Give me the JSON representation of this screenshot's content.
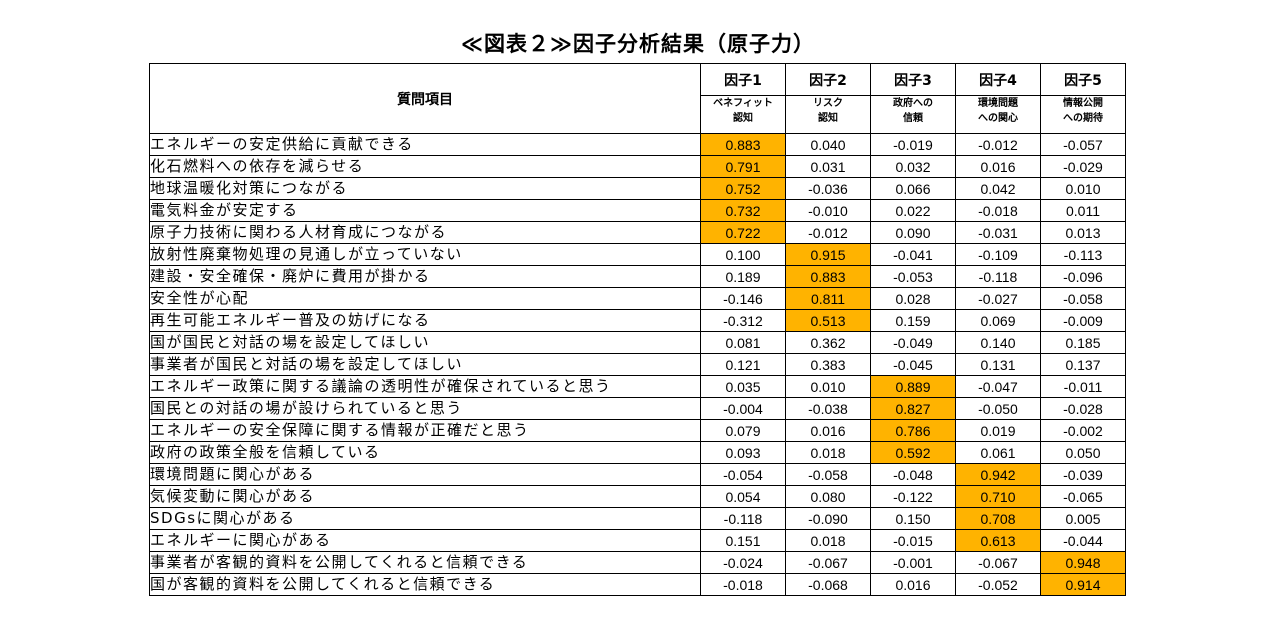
{
  "title": "≪図表２≫因子分析結果（原子力）",
  "table": {
    "item_header": "質問項目",
    "highlight_color": "#FFB300",
    "factors": [
      {
        "name": "因子1",
        "label": "ベネフィット\n認知"
      },
      {
        "name": "因子2",
        "label": "リスク\n認知"
      },
      {
        "name": "因子3",
        "label": "政府への\n信頼"
      },
      {
        "name": "因子4",
        "label": "環境問題\nへの関心"
      },
      {
        "name": "因子5",
        "label": "情報公開\nへの期待"
      }
    ],
    "rows": [
      {
        "item": "エネルギーの安定供給に貢献できる",
        "values": [
          "0.883",
          "0.040",
          "-0.019",
          "-0.012",
          "-0.057"
        ],
        "highlight": 0
      },
      {
        "item": "化石燃料への依存を減らせる",
        "values": [
          "0.791",
          "0.031",
          "0.032",
          "0.016",
          "-0.029"
        ],
        "highlight": 0
      },
      {
        "item": "地球温暖化対策につながる",
        "values": [
          "0.752",
          "-0.036",
          "0.066",
          "0.042",
          "0.010"
        ],
        "highlight": 0
      },
      {
        "item": "電気料金が安定する",
        "values": [
          "0.732",
          "-0.010",
          "0.022",
          "-0.018",
          "0.011"
        ],
        "highlight": 0
      },
      {
        "item": "原子力技術に関わる人材育成につながる",
        "values": [
          "0.722",
          "-0.012",
          "0.090",
          "-0.031",
          "0.013"
        ],
        "highlight": 0
      },
      {
        "item": "放射性廃棄物処理の見通しが立っていない",
        "values": [
          "0.100",
          "0.915",
          "-0.041",
          "-0.109",
          "-0.113"
        ],
        "highlight": 1
      },
      {
        "item": "建設・安全確保・廃炉に費用が掛かる",
        "values": [
          "0.189",
          "0.883",
          "-0.053",
          "-0.118",
          "-0.096"
        ],
        "highlight": 1
      },
      {
        "item": "安全性が心配",
        "values": [
          "-0.146",
          "0.811",
          "0.028",
          "-0.027",
          "-0.058"
        ],
        "highlight": 1
      },
      {
        "item": "再生可能エネルギー普及の妨げになる",
        "values": [
          "-0.312",
          "0.513",
          "0.159",
          "0.069",
          "-0.009"
        ],
        "highlight": 1
      },
      {
        "item": "国が国民と対話の場を設定してほしい",
        "values": [
          "0.081",
          "0.362",
          "-0.049",
          "0.140",
          "0.185"
        ],
        "highlight": null
      },
      {
        "item": "事業者が国民と対話の場を設定してほしい",
        "values": [
          "0.121",
          "0.383",
          "-0.045",
          "0.131",
          "0.137"
        ],
        "highlight": null
      },
      {
        "item": "エネルギー政策に関する議論の透明性が確保されていると思う",
        "values": [
          "0.035",
          "0.010",
          "0.889",
          "-0.047",
          "-0.011"
        ],
        "highlight": 2
      },
      {
        "item": "国民との対話の場が設けられていると思う",
        "values": [
          "-0.004",
          "-0.038",
          "0.827",
          "-0.050",
          "-0.028"
        ],
        "highlight": 2
      },
      {
        "item": "エネルギーの安全保障に関する情報が正確だと思う",
        "values": [
          "0.079",
          "0.016",
          "0.786",
          "0.019",
          "-0.002"
        ],
        "highlight": 2
      },
      {
        "item": "政府の政策全般を信頼している",
        "values": [
          "0.093",
          "0.018",
          "0.592",
          "0.061",
          "0.050"
        ],
        "highlight": 2
      },
      {
        "item": "環境問題に関心がある",
        "values": [
          "-0.054",
          "-0.058",
          "-0.048",
          "0.942",
          "-0.039"
        ],
        "highlight": 3
      },
      {
        "item": "気候変動に関心がある",
        "values": [
          "0.054",
          "0.080",
          "-0.122",
          "0.710",
          "-0.065"
        ],
        "highlight": 3
      },
      {
        "item": "SDGsに関心がある",
        "values": [
          "-0.118",
          "-0.090",
          "0.150",
          "0.708",
          "0.005"
        ],
        "highlight": 3
      },
      {
        "item": "エネルギーに関心がある",
        "values": [
          "0.151",
          "0.018",
          "-0.015",
          "0.613",
          "-0.044"
        ],
        "highlight": 3
      },
      {
        "item": "事業者が客観的資料を公開してくれると信頼できる",
        "values": [
          "-0.024",
          "-0.067",
          "-0.001",
          "-0.067",
          "0.948"
        ],
        "highlight": 4
      },
      {
        "item": "国が客観的資料を公開してくれると信頼できる",
        "values": [
          "-0.018",
          "-0.068",
          "0.016",
          "-0.052",
          "0.914"
        ],
        "highlight": 4
      }
    ]
  }
}
